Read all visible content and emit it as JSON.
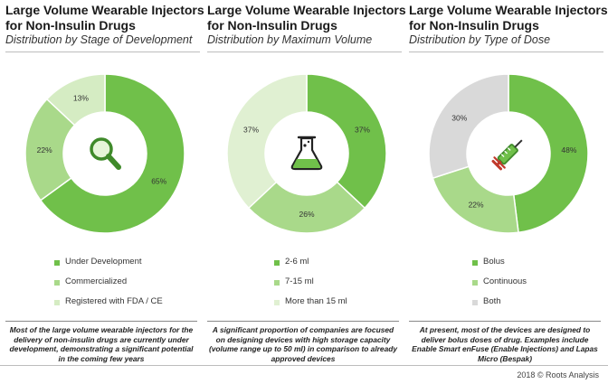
{
  "chart_data": [
    {
      "type": "pie",
      "title": "Large Volume Wearable Injectors for Non-Insulin Drugs",
      "subtitle": "Distribution by Stage of Development",
      "categories": [
        "Under Development",
        "Commercialized",
        "Registered with FDA / CE"
      ],
      "values": [
        65,
        22,
        13
      ],
      "value_labels": [
        "65%",
        "22%",
        "13%"
      ],
      "colors": [
        "#70c04a",
        "#a9d98a",
        "#d5ecc3"
      ],
      "icon": "magnifier-icon",
      "note": "Most of the large volume wearable injectors for the delivery of non-insulin drugs are currently under development, demonstrating a significant potential in the coming few years"
    },
    {
      "type": "pie",
      "title": "Large Volume Wearable Injectors for Non-Insulin Drugs",
      "subtitle": "Distribution by Maximum Volume",
      "categories": [
        "2-6 ml",
        "7-15 ml",
        "More than 15 ml"
      ],
      "values": [
        37,
        26,
        37
      ],
      "value_labels": [
        "37%",
        "26%",
        "37%"
      ],
      "colors": [
        "#70c04a",
        "#a9d98a",
        "#e0f0d2"
      ],
      "icon": "flask-icon",
      "note": "A significant proportion of companies are focused on designing devices with high storage capacity (volume range up to 50 ml) in comparison to already approved devices"
    },
    {
      "type": "pie",
      "title": "Large Volume Wearable Injectors for Non-Insulin Drugs",
      "subtitle": "Distribution by Type of Dose",
      "categories": [
        "Bolus",
        "Continuous",
        "Both"
      ],
      "values": [
        48,
        22,
        30
      ],
      "value_labels": [
        "48%",
        "22%",
        "30%"
      ],
      "colors": [
        "#70c04a",
        "#a9d98a",
        "#d9d9d9"
      ],
      "icon": "syringe-icon",
      "note": "At present, most of the devices are designed to deliver bolus doses of drug. Examples include Enable Smart enFuse (Enable Injections) and Lapas Micro (Bespak)"
    }
  ],
  "footer": "2018 © Roots Analysis"
}
